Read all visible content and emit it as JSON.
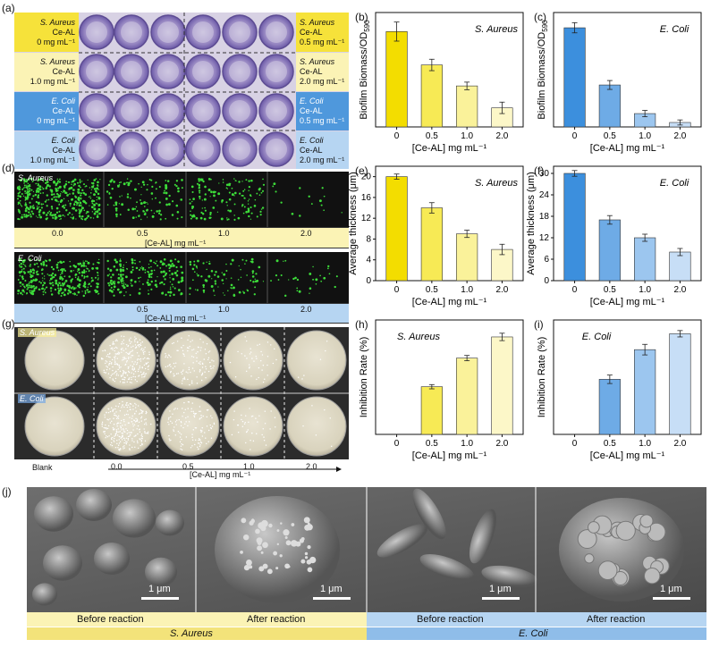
{
  "panel_letters": {
    "a": "(a)",
    "b": "(b)",
    "c": "(c)",
    "d": "(d)",
    "e": "(e)",
    "f": "(f)",
    "g": "(g)",
    "h": "(h)",
    "i": "(i)",
    "j": "(j)"
  },
  "panel_a": {
    "left_labels": [
      {
        "organism": "S. Aureus",
        "agent": "Ce-AL",
        "dose": "0 mg mL⁻¹"
      },
      {
        "organism": "S. Aureus",
        "agent": "Ce-AL",
        "dose": "1.0 mg mL⁻¹"
      },
      {
        "organism": "E. Coli",
        "agent": "Ce-AL",
        "dose": "0 mg mL⁻¹"
      },
      {
        "organism": "E. Coli",
        "agent": "Ce-AL",
        "dose": "1.0 mg mL⁻¹"
      }
    ],
    "right_labels": [
      {
        "organism": "S. Aureus",
        "agent": "Ce-AL",
        "dose": "0.5 mg mL⁻¹"
      },
      {
        "organism": "S. Aureus",
        "agent": "Ce-AL",
        "dose": "2.0 mg mL⁻¹"
      },
      {
        "organism": "E. Coli",
        "agent": "Ce-AL",
        "dose": "0.5 mg mL⁻¹"
      },
      {
        "organism": "E. Coli",
        "agent": "Ce-AL",
        "dose": "2.0 mg mL⁻¹"
      }
    ]
  },
  "panel_d": {
    "row1_label": "S. Aureus",
    "row2_label": "E. Coli",
    "ticks": [
      "0.0",
      "0.5",
      "1.0",
      "2.0"
    ],
    "axis_label": "[Ce-AL] mg mL⁻¹"
  },
  "panel_g": {
    "row1_label": "S. Aureus",
    "row2_label": "E. Coli",
    "blank_label": "Blank",
    "ticks": [
      "0.0",
      "0.5",
      "1.0",
      "2.0"
    ],
    "axis_label": "[Ce-AL] mg mL⁻¹"
  },
  "panel_j": {
    "scale": "1 μm",
    "captions": [
      "Before reaction",
      "After reaction",
      "Before reaction",
      "After reaction"
    ],
    "groups": [
      "S. Aureus",
      "E. Coli"
    ]
  },
  "colors": {
    "yellow_dark": "#f3dd00",
    "yellow_mid": "#f7ea55",
    "yellow_light": "#faf29a",
    "yellow_pale": "#fcf7c8",
    "blue_dark": "#3c8fdd",
    "blue_mid": "#6eabe6",
    "blue_light": "#9cc6ef",
    "blue_pale": "#c7def6",
    "label_yellow": "#f8e96a",
    "label_yellow_pale": "#fbf3b5",
    "label_blue": "#4f98dc",
    "label_blue_pale": "#b6d5f2"
  },
  "chart_data": [
    {
      "id": "b",
      "type": "bar",
      "title": "S. Aureus",
      "categories": [
        "0",
        "0.5",
        "1.0",
        "2.0"
      ],
      "values": [
        5.0,
        3.25,
        2.15,
        1.0
      ],
      "errors": [
        0.5,
        0.3,
        0.2,
        0.3
      ],
      "ylabel": "Biofilm Biomass/OD",
      "ylabel_sub": "590",
      "xlabel": "[Ce-AL] mg mL⁻¹",
      "ylim": [
        0,
        6
      ],
      "yticks": [],
      "palette": "yellow"
    },
    {
      "id": "c",
      "type": "bar",
      "title": "E. Coli",
      "categories": [
        "0",
        "0.5",
        "1.0",
        "2.0"
      ],
      "values": [
        7.8,
        3.3,
        1.05,
        0.35
      ],
      "errors": [
        0.4,
        0.35,
        0.25,
        0.2
      ],
      "ylabel": "Biofilm Biomass/OD",
      "ylabel_sub": "590",
      "xlabel": "[Ce-AL] mg mL⁻¹",
      "ylim": [
        0,
        9
      ],
      "yticks": [],
      "palette": "blue"
    },
    {
      "id": "e",
      "type": "bar",
      "title": "S. Aureus",
      "categories": [
        "0",
        "0.5",
        "1.0",
        "2.0"
      ],
      "values": [
        20,
        14,
        9,
        6
      ],
      "errors": [
        0.5,
        1.0,
        0.7,
        1.0
      ],
      "ylabel": "Average thickness (μm)",
      "xlabel": "[Ce-AL] mg mL⁻¹",
      "ylim": [
        0,
        22
      ],
      "yticks": [
        0,
        4,
        8,
        12,
        16,
        20
      ],
      "palette": "yellow"
    },
    {
      "id": "f",
      "type": "bar",
      "title": "E. Coli",
      "categories": [
        "0",
        "0.5",
        "1.0",
        "2.0"
      ],
      "values": [
        30,
        17,
        12,
        8
      ],
      "errors": [
        0.8,
        1.2,
        1.0,
        1.0
      ],
      "ylabel": "Average thickness (μm)",
      "xlabel": "[Ce-AL] mg mL⁻¹",
      "ylim": [
        0,
        32
      ],
      "yticks": [
        0,
        6,
        12,
        18,
        24,
        30
      ],
      "palette": "blue"
    },
    {
      "id": "h",
      "type": "bar",
      "title": "S. Aureus",
      "categories": [
        "0",
        "0.5",
        "1.0",
        "2.0"
      ],
      "values": [
        0,
        45,
        72,
        92
      ],
      "errors": [
        0,
        2,
        2.5,
        3.5
      ],
      "ylabel": "Inhibition Rate (%)",
      "xlabel": "[Ce-AL] mg mL⁻¹",
      "ylim": [
        0,
        108
      ],
      "yticks": [],
      "palette": "yellow"
    },
    {
      "id": "i",
      "type": "bar",
      "title": "E. Coli",
      "categories": [
        "0",
        "0.5",
        "1.0",
        "2.0"
      ],
      "values": [
        0,
        52,
        80,
        95
      ],
      "errors": [
        0,
        4,
        5,
        3
      ],
      "ylabel": "Inhibition Rate (%)",
      "xlabel": "[Ce-AL] mg mL⁻¹",
      "ylim": [
        0,
        108
      ],
      "yticks": [],
      "palette": "blue"
    }
  ]
}
